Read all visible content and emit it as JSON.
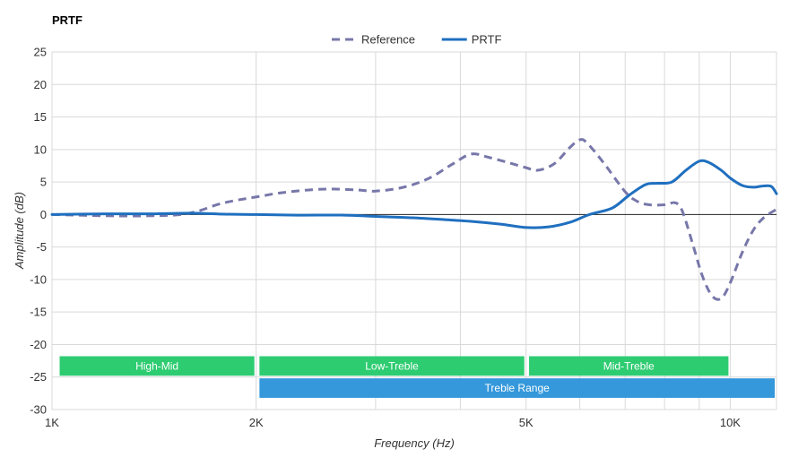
{
  "chart_data": {
    "type": "line",
    "title": "PRTF",
    "xlabel": "Frequency (Hz)",
    "ylabel": "Amplitude (dB)",
    "x_scale": "log",
    "xlim": [
      1000,
      11700
    ],
    "ylim": [
      -30,
      25
    ],
    "y_ticks": [
      25,
      20,
      15,
      10,
      5,
      0,
      -5,
      -10,
      -15,
      -20,
      -25,
      -30
    ],
    "x_ticks": [
      {
        "value": 1000,
        "label": "1K"
      },
      {
        "value": 2000,
        "label": "2K"
      },
      {
        "value": 5000,
        "label": "5K"
      },
      {
        "value": 10000,
        "label": "10K"
      }
    ],
    "x_gridlines": [
      1000,
      2000,
      3000,
      4000,
      5000,
      6000,
      7000,
      8000,
      9000,
      10000,
      11700
    ],
    "grid": true,
    "legend_position": "top-center",
    "series": [
      {
        "name": "Reference",
        "style": "dashed",
        "color": "#7777aa",
        "points": [
          [
            1000,
            0
          ],
          [
            1200,
            -0.2
          ],
          [
            1400,
            -0.2
          ],
          [
            1550,
            0
          ],
          [
            1650,
            0.6
          ],
          [
            1750,
            1.5
          ],
          [
            1850,
            2.1
          ],
          [
            2000,
            2.7
          ],
          [
            2200,
            3.4
          ],
          [
            2500,
            3.9
          ],
          [
            2800,
            3.8
          ],
          [
            3000,
            3.6
          ],
          [
            3300,
            4.2
          ],
          [
            3600,
            5.6
          ],
          [
            3900,
            7.8
          ],
          [
            4150,
            9.3
          ],
          [
            4400,
            8.8
          ],
          [
            4700,
            8.0
          ],
          [
            5000,
            7.2
          ],
          [
            5200,
            6.8
          ],
          [
            5500,
            7.8
          ],
          [
            5800,
            10.3
          ],
          [
            6000,
            11.5
          ],
          [
            6150,
            11.0
          ],
          [
            6500,
            8.0
          ],
          [
            7000,
            3.5
          ],
          [
            7300,
            2.0
          ],
          [
            7600,
            1.5
          ],
          [
            8000,
            1.5
          ],
          [
            8300,
            1.8
          ],
          [
            8500,
            0.5
          ],
          [
            8800,
            -4.5
          ],
          [
            9100,
            -9.5
          ],
          [
            9400,
            -12.5
          ],
          [
            9700,
            -12.9
          ],
          [
            10000,
            -10.5
          ],
          [
            10400,
            -6.0
          ],
          [
            10800,
            -2.5
          ],
          [
            11200,
            -0.5
          ],
          [
            11700,
            0.8
          ]
        ]
      },
      {
        "name": "PRTF",
        "style": "solid",
        "color": "#1f6fbf",
        "points": [
          [
            1000,
            0
          ],
          [
            1200,
            0.1
          ],
          [
            1400,
            0.1
          ],
          [
            1600,
            0.2
          ],
          [
            1800,
            0.05
          ],
          [
            2000,
            0
          ],
          [
            2300,
            -0.1
          ],
          [
            2700,
            -0.1
          ],
          [
            3000,
            -0.3
          ],
          [
            3400,
            -0.5
          ],
          [
            3800,
            -0.8
          ],
          [
            4200,
            -1.1
          ],
          [
            4600,
            -1.5
          ],
          [
            5000,
            -2.0
          ],
          [
            5400,
            -1.9
          ],
          [
            5800,
            -1.2
          ],
          [
            6200,
            0
          ],
          [
            6700,
            1.0
          ],
          [
            7100,
            3.0
          ],
          [
            7500,
            4.6
          ],
          [
            7800,
            4.8
          ],
          [
            8200,
            5.0
          ],
          [
            8600,
            6.8
          ],
          [
            9000,
            8.2
          ],
          [
            9300,
            8.0
          ],
          [
            9700,
            6.8
          ],
          [
            10000,
            5.6
          ],
          [
            10400,
            4.5
          ],
          [
            10800,
            4.2
          ],
          [
            11200,
            4.4
          ],
          [
            11500,
            4.3
          ],
          [
            11700,
            3.2
          ]
        ]
      }
    ],
    "annotations": [
      {
        "label": "High-Mid",
        "x_start": 1020,
        "x_end": 2000,
        "y_top": -21.8,
        "y_bottom": -24.8,
        "color": "#2ecc71"
      },
      {
        "label": "Low-Treble",
        "x_start": 2010,
        "x_end": 5000,
        "y_top": -21.8,
        "y_bottom": -24.8,
        "color": "#2ecc71"
      },
      {
        "label": "Mid-Treble",
        "x_start": 5020,
        "x_end": 10000,
        "y_top": -21.8,
        "y_bottom": -24.8,
        "color": "#2ecc71"
      },
      {
        "label": "Treble Range",
        "x_start": 2010,
        "x_end": 11700,
        "y_top": -25.2,
        "y_bottom": -28.2,
        "color": "#3498db"
      }
    ]
  }
}
